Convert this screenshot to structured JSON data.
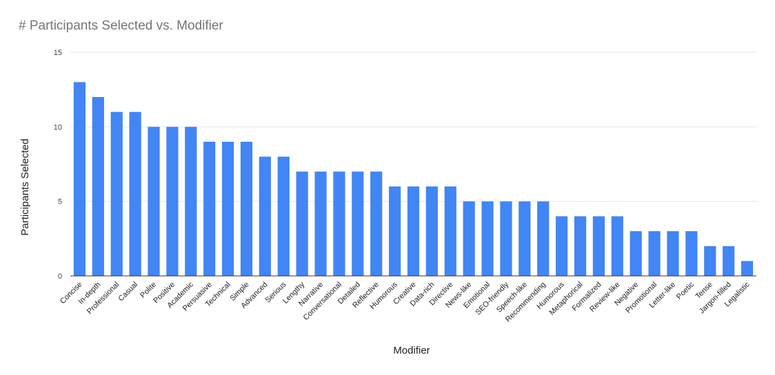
{
  "chart_data": {
    "type": "bar",
    "title": "# Participants Selected vs. Modifier",
    "xlabel": "Modifier",
    "ylabel": "Participants Selected",
    "ylim": [
      0,
      15
    ],
    "yticks": [
      0,
      5,
      10,
      15
    ],
    "grid": true,
    "legend": "none",
    "categories": [
      "Concise",
      "In-depth",
      "Professional",
      "Casual",
      "Polite",
      "Positive",
      "Academic",
      "Persuasive",
      "Technical",
      "Simple",
      "Advanced",
      "Serious",
      "Lengthy",
      "Narrative",
      "Conversational",
      "Detailed",
      "Reflective",
      "Humorous",
      "Creative",
      "Data-rich",
      "Directive",
      "News-like",
      "Emotional",
      "SEO-friendly",
      "Speech-like",
      "Recommending",
      "Humorous",
      "Metaphorical",
      "Formalized",
      "Review-like",
      "Negative",
      "Promotional",
      "Letter-like",
      "Poetic",
      "Tense",
      "Jargon-filled",
      "Legalistic"
    ],
    "values": [
      13,
      12,
      11,
      11,
      10,
      10,
      10,
      9,
      9,
      9,
      8,
      8,
      7,
      7,
      7,
      7,
      7,
      6,
      6,
      6,
      6,
      5,
      5,
      5,
      5,
      5,
      4,
      4,
      4,
      4,
      3,
      3,
      3,
      3,
      2,
      2,
      1
    ],
    "bar_color": "#4285f4",
    "grid_color": "#e6e6e6",
    "axis_color": "#333333"
  }
}
